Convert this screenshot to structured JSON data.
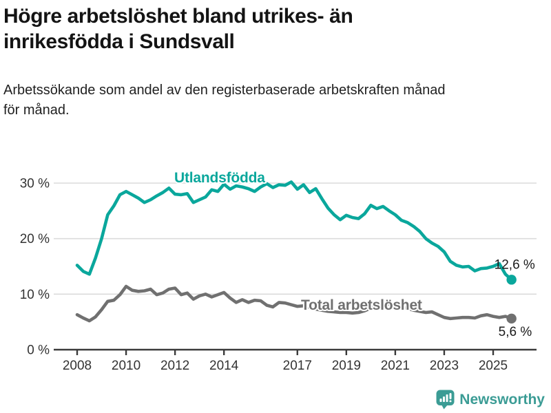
{
  "header": {
    "title_line1": "Högre arbetslöshet bland utrikes- än",
    "title_line2": "inrikesfödda i Sundsvall",
    "subtitle_line1": "Arbetssökande som andel av den registerbaserade arbetskraften månad",
    "subtitle_line2": "för månad."
  },
  "footer": {
    "brand_name": "Newsworthy"
  },
  "colors": {
    "teal_line": "#0AA79C",
    "gray_line": "#707070",
    "grid": "#DBDBDB",
    "axis": "#3A3A3A",
    "tick_text": "#333333",
    "value_text": "#1A1A1A",
    "logo_teal": "#3B9C95",
    "background": "#FFFFFF"
  },
  "chart_data": {
    "type": "line",
    "title": "Högre arbetslöshet bland utrikes- än inrikesfödda i Sundsvall",
    "subtitle": "Arbetssökande som andel av den registerbaserade arbetskraften månad för månad.",
    "xlabel": "",
    "ylabel": "",
    "grid": "horizontal",
    "legend_position": "inline-labels",
    "x_axis": {
      "ticks": [
        2008,
        2010,
        2012,
        2014,
        2017,
        2019,
        2021,
        2023,
        2025
      ],
      "range": [
        2007.05,
        2026.8
      ]
    },
    "y_axis": {
      "ticks": [
        0,
        10,
        20,
        30
      ],
      "suffix": " %",
      "range": [
        0,
        33.6
      ]
    },
    "series": [
      {
        "name": "Total arbetslöshet",
        "color": "#707070",
        "end_label": "5,6 %",
        "last_value": 5.6,
        "points": [
          [
            2008.0,
            6.3
          ],
          [
            2008.25,
            5.7
          ],
          [
            2008.5,
            5.2
          ],
          [
            2008.75,
            5.9
          ],
          [
            2009.0,
            7.2
          ],
          [
            2009.25,
            8.7
          ],
          [
            2009.5,
            8.9
          ],
          [
            2009.75,
            9.9
          ],
          [
            2010.0,
            11.4
          ],
          [
            2010.25,
            10.7
          ],
          [
            2010.5,
            10.5
          ],
          [
            2010.75,
            10.6
          ],
          [
            2011.0,
            10.9
          ],
          [
            2011.25,
            9.9
          ],
          [
            2011.5,
            10.2
          ],
          [
            2011.75,
            10.9
          ],
          [
            2012.0,
            11.1
          ],
          [
            2012.25,
            9.9
          ],
          [
            2012.5,
            10.2
          ],
          [
            2012.75,
            9.1
          ],
          [
            2013.0,
            9.7
          ],
          [
            2013.25,
            10.0
          ],
          [
            2013.5,
            9.5
          ],
          [
            2013.75,
            9.9
          ],
          [
            2014.0,
            10.3
          ],
          [
            2014.25,
            9.3
          ],
          [
            2014.5,
            8.5
          ],
          [
            2014.75,
            9.0
          ],
          [
            2015.0,
            8.5
          ],
          [
            2015.25,
            8.9
          ],
          [
            2015.5,
            8.8
          ],
          [
            2015.75,
            8.0
          ],
          [
            2016.0,
            7.7
          ],
          [
            2016.25,
            8.5
          ],
          [
            2016.5,
            8.4
          ],
          [
            2016.75,
            8.1
          ],
          [
            2017.0,
            7.8
          ],
          [
            2017.25,
            7.9
          ],
          [
            2017.5,
            7.6
          ],
          [
            2017.75,
            7.3
          ],
          [
            2018.0,
            7.1
          ],
          [
            2018.25,
            6.9
          ],
          [
            2018.5,
            6.8
          ],
          [
            2018.75,
            6.7
          ],
          [
            2019.0,
            6.7
          ],
          [
            2019.25,
            6.6
          ],
          [
            2019.5,
            6.7
          ],
          [
            2019.75,
            7.0
          ],
          [
            2020.0,
            7.5
          ],
          [
            2020.25,
            8.2
          ],
          [
            2020.5,
            8.4
          ],
          [
            2020.75,
            8.2
          ],
          [
            2021.0,
            8.0
          ],
          [
            2021.25,
            7.7
          ],
          [
            2021.5,
            7.4
          ],
          [
            2021.75,
            7.1
          ],
          [
            2022.0,
            6.9
          ],
          [
            2022.25,
            6.7
          ],
          [
            2022.5,
            6.8
          ],
          [
            2022.75,
            6.3
          ],
          [
            2023.0,
            5.8
          ],
          [
            2023.25,
            5.6
          ],
          [
            2023.5,
            5.7
          ],
          [
            2023.75,
            5.8
          ],
          [
            2024.0,
            5.8
          ],
          [
            2024.25,
            5.7
          ],
          [
            2024.5,
            6.1
          ],
          [
            2024.75,
            6.3
          ],
          [
            2025.0,
            6.0
          ],
          [
            2025.25,
            5.8
          ],
          [
            2025.5,
            6.0
          ],
          [
            2025.75,
            5.6
          ]
        ]
      },
      {
        "name": "Utlandsfödda",
        "color": "#0AA79C",
        "end_label": "12,6 %",
        "last_value": 12.6,
        "points": [
          [
            2008.0,
            15.2
          ],
          [
            2008.25,
            14.1
          ],
          [
            2008.5,
            13.6
          ],
          [
            2008.75,
            16.5
          ],
          [
            2009.0,
            20.0
          ],
          [
            2009.25,
            24.3
          ],
          [
            2009.5,
            25.9
          ],
          [
            2009.75,
            27.9
          ],
          [
            2010.0,
            28.5
          ],
          [
            2010.25,
            27.9
          ],
          [
            2010.5,
            27.3
          ],
          [
            2010.75,
            26.5
          ],
          [
            2011.0,
            27.0
          ],
          [
            2011.25,
            27.7
          ],
          [
            2011.5,
            28.3
          ],
          [
            2011.75,
            29.1
          ],
          [
            2012.0,
            28.0
          ],
          [
            2012.25,
            27.9
          ],
          [
            2012.5,
            28.1
          ],
          [
            2012.75,
            26.5
          ],
          [
            2013.0,
            27.0
          ],
          [
            2013.25,
            27.5
          ],
          [
            2013.5,
            28.8
          ],
          [
            2013.75,
            28.5
          ],
          [
            2014.0,
            29.8
          ],
          [
            2014.25,
            28.9
          ],
          [
            2014.5,
            29.5
          ],
          [
            2014.75,
            29.3
          ],
          [
            2015.0,
            29.0
          ],
          [
            2015.25,
            28.5
          ],
          [
            2015.5,
            29.3
          ],
          [
            2015.75,
            29.9
          ],
          [
            2016.0,
            29.2
          ],
          [
            2016.25,
            29.7
          ],
          [
            2016.5,
            29.6
          ],
          [
            2016.75,
            30.2
          ],
          [
            2017.0,
            28.9
          ],
          [
            2017.25,
            29.7
          ],
          [
            2017.5,
            28.3
          ],
          [
            2017.75,
            29.0
          ],
          [
            2018.0,
            27.2
          ],
          [
            2018.25,
            25.5
          ],
          [
            2018.5,
            24.3
          ],
          [
            2018.75,
            23.4
          ],
          [
            2019.0,
            24.2
          ],
          [
            2019.25,
            23.8
          ],
          [
            2019.5,
            23.6
          ],
          [
            2019.75,
            24.5
          ],
          [
            2020.0,
            26.0
          ],
          [
            2020.25,
            25.4
          ],
          [
            2020.5,
            25.8
          ],
          [
            2020.75,
            25.0
          ],
          [
            2021.0,
            24.3
          ],
          [
            2021.25,
            23.3
          ],
          [
            2021.5,
            22.9
          ],
          [
            2021.75,
            22.2
          ],
          [
            2022.0,
            21.3
          ],
          [
            2022.25,
            20.0
          ],
          [
            2022.5,
            19.2
          ],
          [
            2022.75,
            18.6
          ],
          [
            2023.0,
            17.6
          ],
          [
            2023.25,
            15.9
          ],
          [
            2023.5,
            15.2
          ],
          [
            2023.75,
            14.9
          ],
          [
            2024.0,
            15.0
          ],
          [
            2024.25,
            14.2
          ],
          [
            2024.5,
            14.6
          ],
          [
            2024.75,
            14.7
          ],
          [
            2025.0,
            15.0
          ],
          [
            2025.25,
            15.5
          ],
          [
            2025.5,
            13.6
          ],
          [
            2025.75,
            12.6
          ]
        ]
      }
    ]
  }
}
